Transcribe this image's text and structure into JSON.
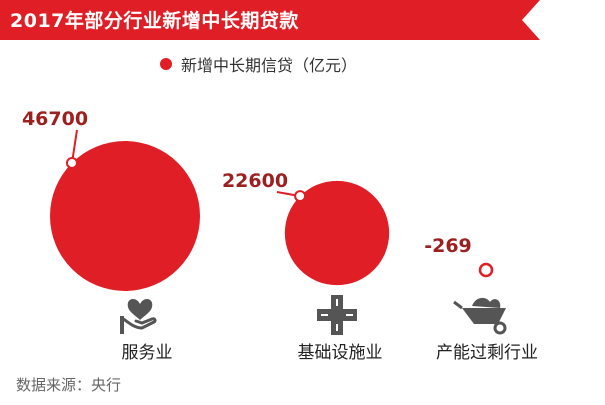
{
  "colors": {
    "accent": "#e01e25",
    "value_text": "#9c2020",
    "icon": "#555555",
    "source_text": "#666666"
  },
  "header": {
    "title": "2017年部分行业新增中长期贷款"
  },
  "legend": {
    "label": "新增中长期信贷（亿元）"
  },
  "icons": [
    "heart-hand-icon",
    "crossroads-icon",
    "wheelbarrow-icon"
  ],
  "chart_data": {
    "type": "bubble",
    "title": "2017年部分行业新增中长期贷款",
    "unit": "亿元",
    "series": [
      {
        "name": "新增中长期信贷（亿元）",
        "values": [
          46700,
          22600,
          -269
        ]
      }
    ],
    "categories": [
      "服务业",
      "基础设施业",
      "产能过剩行业"
    ],
    "data_labels": [
      "46700",
      "22600",
      "-269"
    ]
  },
  "source": "数据来源：央行"
}
